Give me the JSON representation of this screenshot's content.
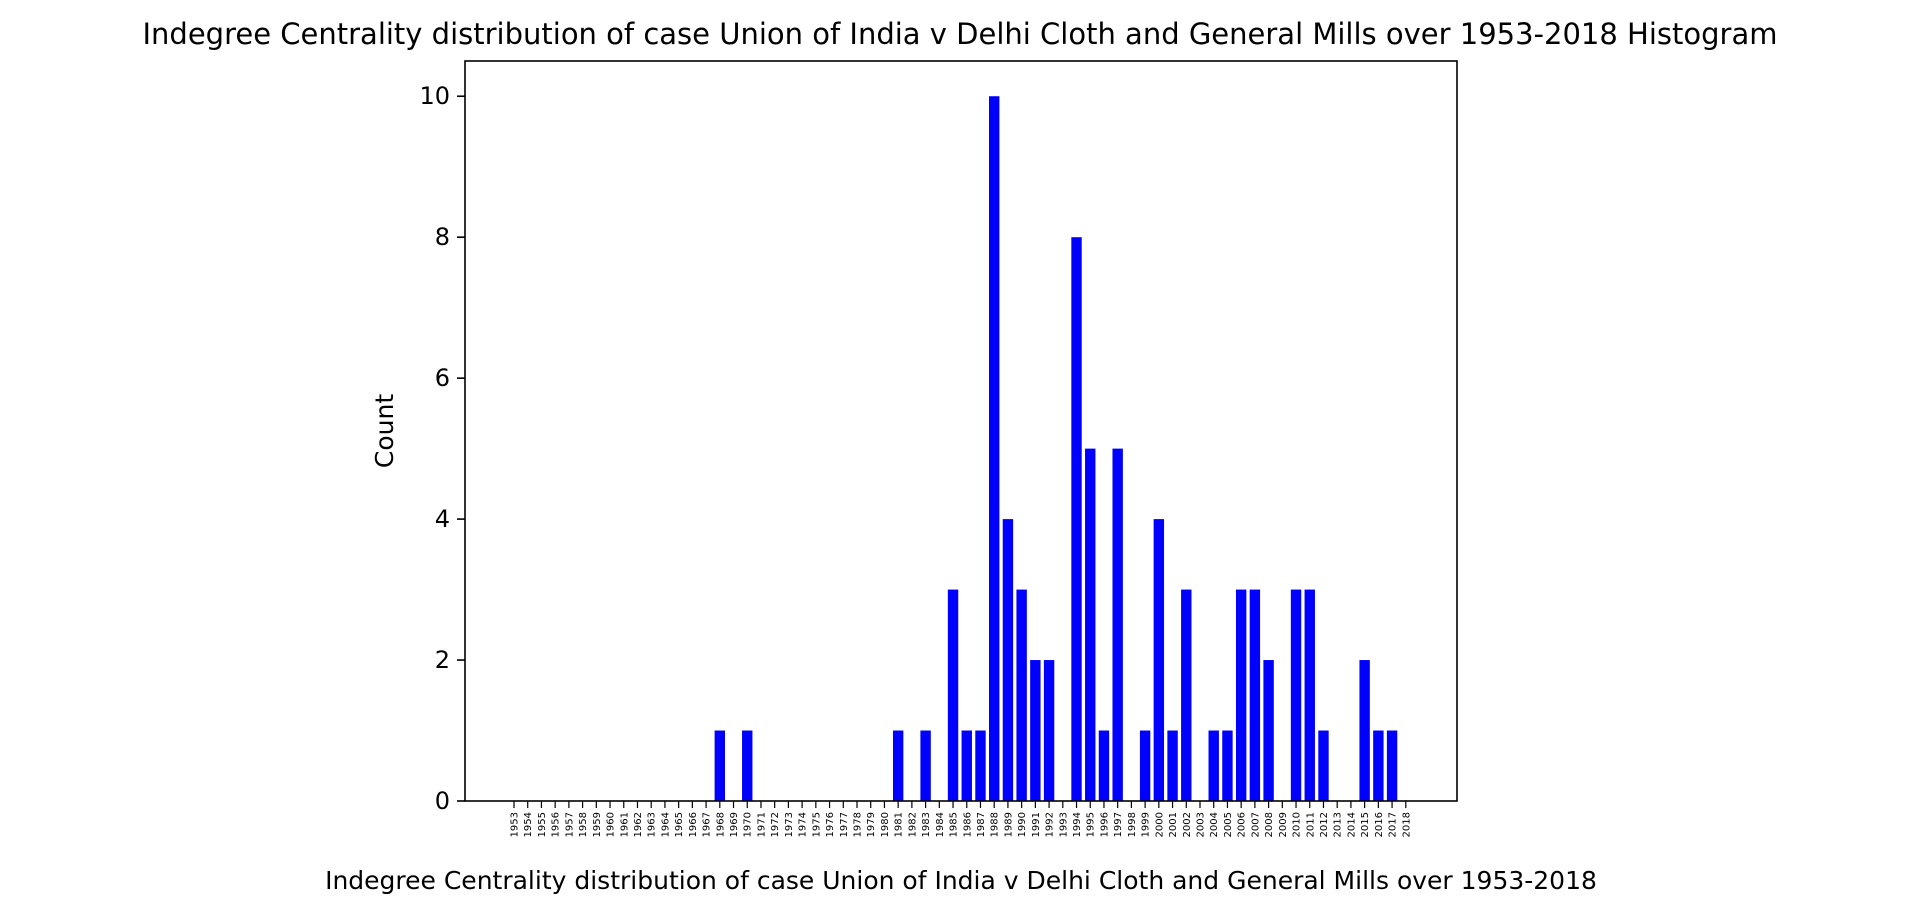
{
  "chart_data": {
    "type": "bar",
    "title": "Indegree Centrality distribution of case Union of India v Delhi Cloth and General Mills over 1953-2018 Histogram",
    "xlabel": "Indegree Centrality distribution of case Union of India v Delhi Cloth and General Mills over 1953-2018",
    "ylabel": "Count",
    "ylim": [
      0,
      10.5
    ],
    "yticks": [
      0,
      2,
      4,
      6,
      8,
      10
    ],
    "bar_color": "#0000ff",
    "grid": false,
    "categories": [
      "1953",
      "1954",
      "1955",
      "1956",
      "1957",
      "1958",
      "1959",
      "1960",
      "1961",
      "1962",
      "1963",
      "1964",
      "1965",
      "1966",
      "1967",
      "1968",
      "1969",
      "1970",
      "1971",
      "1972",
      "1973",
      "1974",
      "1975",
      "1976",
      "1977",
      "1978",
      "1979",
      "1980",
      "1981",
      "1982",
      "1983",
      "1984",
      "1985",
      "1986",
      "1987",
      "1988",
      "1989",
      "1990",
      "1991",
      "1992",
      "1993",
      "1994",
      "1995",
      "1996",
      "1997",
      "1998",
      "1999",
      "2000",
      "2001",
      "2002",
      "2003",
      "2004",
      "2005",
      "2006",
      "2007",
      "2008",
      "2009",
      "2010",
      "2011",
      "2012",
      "2013",
      "2014",
      "2015",
      "2016",
      "2017",
      "2018"
    ],
    "values": [
      0,
      0,
      0,
      0,
      0,
      0,
      0,
      0,
      0,
      0,
      0,
      0,
      0,
      0,
      0,
      1,
      0,
      1,
      0,
      0,
      0,
      0,
      0,
      0,
      0,
      0,
      0,
      0,
      1,
      0,
      1,
      0,
      3,
      1,
      1,
      10,
      4,
      3,
      2,
      2,
      0,
      8,
      5,
      1,
      5,
      0,
      1,
      4,
      1,
      3,
      0,
      1,
      1,
      3,
      3,
      2,
      0,
      3,
      3,
      1,
      0,
      0,
      2,
      1,
      1,
      0
    ]
  }
}
